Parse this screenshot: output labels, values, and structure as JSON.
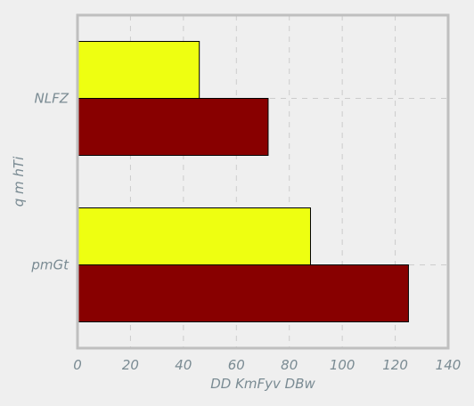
{
  "chart_data": {
    "type": "bar",
    "orientation": "horizontal",
    "title": "",
    "xlabel": "DD KmFyv DBw",
    "ylabel": "q m hTi",
    "categories": [
      "NLFZ",
      "pmGt"
    ],
    "series": [
      {
        "color": "#eeff11",
        "values": [
          46,
          88
        ]
      },
      {
        "color": "#880000",
        "values": [
          72,
          125
        ]
      }
    ],
    "xlim": [
      0,
      140
    ],
    "xticks": [
      0,
      20,
      40,
      60,
      80,
      100,
      120,
      140
    ],
    "grid": true,
    "legend": "none"
  },
  "colors": {
    "background": "#efefef",
    "frame": "#bfbfbf",
    "grid": "#cccccc",
    "text": "#7a8b93"
  }
}
